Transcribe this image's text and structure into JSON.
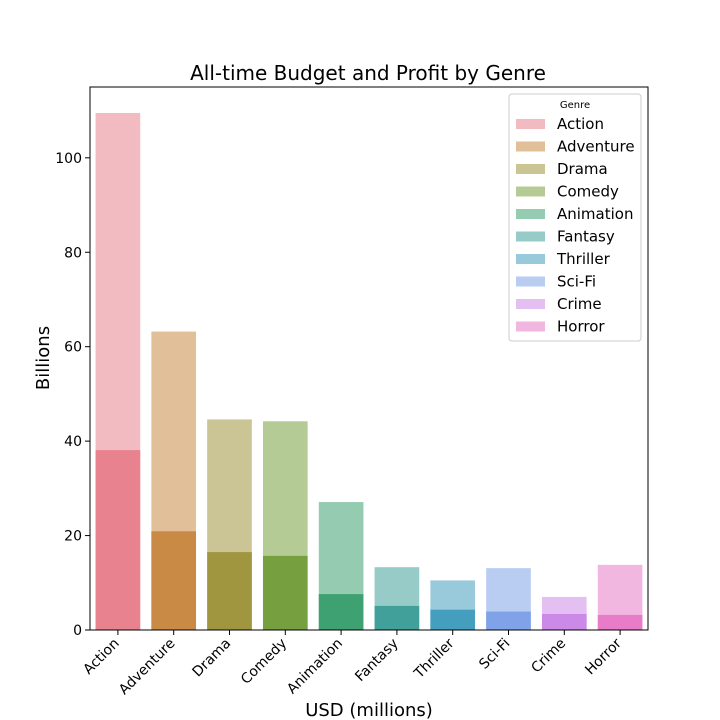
{
  "chart_data": {
    "type": "bar",
    "title": "All-time Budget and Profit by Genre",
    "xlabel": "USD (millions)",
    "ylabel": "Billions",
    "ylim": [
      0,
      115
    ],
    "yticks": [
      0,
      20,
      40,
      60,
      80,
      100
    ],
    "categories": [
      "Action",
      "Adventure",
      "Drama",
      "Comedy",
      "Animation",
      "Fantasy",
      "Thriller",
      "Sci-Fi",
      "Crime",
      "Horror"
    ],
    "colors": [
      "#e8828f",
      "#c98a45",
      "#a09640",
      "#76a03f",
      "#3ea171",
      "#41a09a",
      "#449fbe",
      "#7fa2e8",
      "#cc8ae8",
      "#e87cc8"
    ],
    "series": [
      {
        "values": [
          109.5,
          63.2,
          44.6,
          44.2,
          27.1,
          13.3,
          10.5,
          13.1,
          7.0,
          13.8
        ]
      },
      {
        "values": [
          38.1,
          20.9,
          16.5,
          15.7,
          7.6,
          5.1,
          4.3,
          3.9,
          3.4,
          3.2
        ]
      }
    ],
    "legend": {
      "title": "Genre",
      "position": "top-right",
      "entries": [
        "Action",
        "Adventure",
        "Drama",
        "Comedy",
        "Animation",
        "Fantasy",
        "Thriller",
        "Sci-Fi",
        "Crime",
        "Horror"
      ]
    },
    "grid": false
  }
}
